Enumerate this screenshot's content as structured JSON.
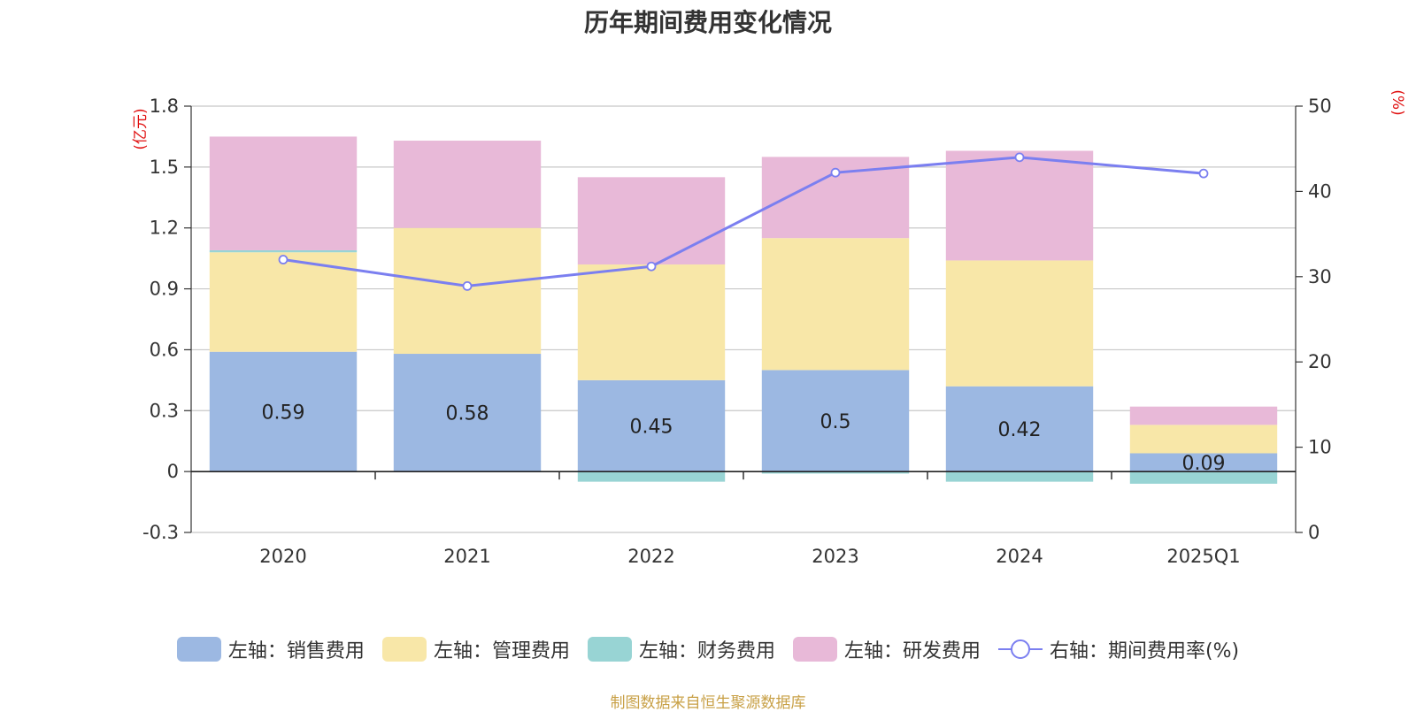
{
  "chart_data": {
    "type": "bar",
    "stacked": true,
    "title": "历年期间费用变化情况",
    "categories": [
      "2020",
      "2021",
      "2022",
      "2023",
      "2024",
      "2025Q1"
    ],
    "series": [
      {
        "name": "左轴：销售费用",
        "axis": "left",
        "color": "#9cb8e2",
        "values": [
          0.59,
          0.58,
          0.45,
          0.5,
          0.42,
          0.09
        ]
      },
      {
        "name": "左轴：管理费用",
        "axis": "left",
        "color": "#f8e7a8",
        "values": [
          0.49,
          0.62,
          0.57,
          0.65,
          0.62,
          0.14
        ]
      },
      {
        "name": "左轴：财务费用",
        "axis": "left",
        "color": "#98d4d4",
        "values": [
          0.01,
          0.0,
          -0.05,
          -0.01,
          -0.05,
          -0.06
        ]
      },
      {
        "name": "左轴：研发费用",
        "axis": "left",
        "color": "#e8b9d8",
        "values": [
          0.56,
          0.43,
          0.43,
          0.4,
          0.54,
          0.09
        ]
      },
      {
        "name": "右轴：期间费用率(%)",
        "axis": "right",
        "type": "line",
        "color": "#7b7ff0",
        "values": [
          32.0,
          28.9,
          31.2,
          42.2,
          44.0,
          42.1
        ]
      }
    ],
    "data_labels": [
      "0.59",
      "0.58",
      "0.45",
      "0.5",
      "0.42",
      "0.09"
    ],
    "left_axis": {
      "unit": "(亿元)",
      "ylim": [
        -0.3,
        1.8
      ],
      "ticks": [
        -0.3,
        0,
        0.3,
        0.6,
        0.9,
        1.2,
        1.5,
        1.8
      ],
      "tick_labels": [
        "-0.3",
        "0",
        "0.3",
        "0.6",
        "0.9",
        "1.2",
        "1.5",
        "1.8"
      ]
    },
    "right_axis": {
      "unit": "(%)",
      "ylim": [
        0,
        50
      ],
      "ticks": [
        0,
        10,
        20,
        30,
        40,
        50
      ],
      "tick_labels": [
        "0",
        "10",
        "20",
        "30",
        "40",
        "50"
      ]
    },
    "grid": true,
    "legend_position": "bottom"
  },
  "source": "制图数据来自恒生聚源数据库"
}
